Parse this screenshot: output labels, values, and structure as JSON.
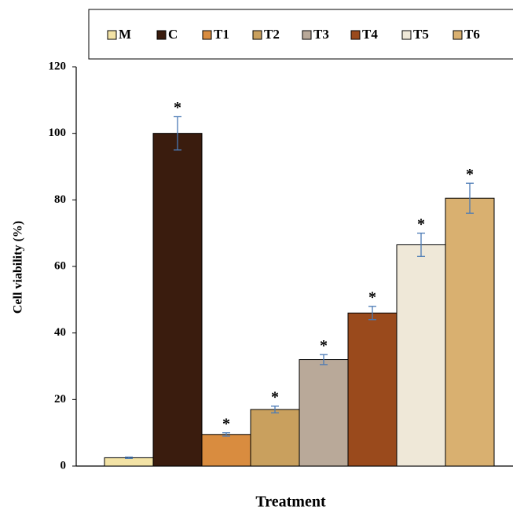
{
  "chart_data": {
    "type": "bar",
    "categories": [
      "M",
      "C",
      "T1",
      "T2",
      "T3",
      "T4",
      "T5",
      "T6"
    ],
    "values": [
      2.5,
      100,
      9.5,
      17,
      32,
      46,
      66.5,
      80.5
    ],
    "errors": [
      0.2,
      5,
      0.5,
      1,
      1.5,
      2,
      3.5,
      4.5
    ],
    "annotations": [
      null,
      "*",
      "*",
      "*",
      "*",
      "*",
      "*",
      "*"
    ],
    "colors": [
      "#f3e3a6",
      "#3a1c0e",
      "#d98c3f",
      "#c9a05e",
      "#b9a999",
      "#9a4a1c",
      "#efe8d8",
      "#d9b070"
    ],
    "error_color": "#4a7ab5",
    "ylim": [
      0,
      120
    ],
    "yticks": [
      0,
      20,
      40,
      60,
      80,
      100,
      120
    ],
    "ylabel": "Cell viability (%)",
    "xlabel": "Treatment",
    "legend": "top"
  }
}
